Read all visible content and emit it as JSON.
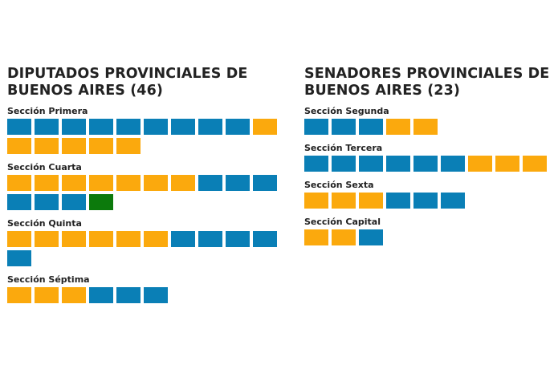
{
  "colors": {
    "blue": "#0a7fb6",
    "orange": "#fba90d",
    "green": "#0c7a0c"
  },
  "chart_data": [
    {
      "type": "waffle",
      "title": "DIPUTADOS PROVINCIALES DE BUENOS AIRES (46)",
      "title_line1": "DIPUTADOS PROVINCIALES DE",
      "title_line2": "BUENOS AIRES (46)",
      "total": 46,
      "sections": [
        {
          "name": "Sección Primera",
          "seats": [
            "blue",
            "blue",
            "blue",
            "blue",
            "blue",
            "blue",
            "blue",
            "blue",
            "blue",
            "orange",
            "orange",
            "orange",
            "orange",
            "orange",
            "orange"
          ]
        },
        {
          "name": "Sección Cuarta",
          "seats": [
            "orange",
            "orange",
            "orange",
            "orange",
            "orange",
            "orange",
            "orange",
            "blue",
            "blue",
            "blue",
            "blue",
            "blue",
            "blue",
            "green"
          ]
        },
        {
          "name": "Sección Quinta",
          "seats": [
            "orange",
            "orange",
            "orange",
            "orange",
            "orange",
            "orange",
            "blue",
            "blue",
            "blue",
            "blue",
            "blue"
          ]
        },
        {
          "name": "Sección Séptima",
          "seats": [
            "orange",
            "orange",
            "orange",
            "blue",
            "blue",
            "blue"
          ]
        }
      ]
    },
    {
      "type": "waffle",
      "title": "SENADORES PROVINCIALES DE BUENOS AIRES (23)",
      "title_line1": "SENADORES PROVINCIALES DE",
      "title_line2": "BUENOS AIRES (23)",
      "total": 23,
      "sections": [
        {
          "name": "Sección Segunda",
          "seats": [
            "blue",
            "blue",
            "blue",
            "orange",
            "orange"
          ]
        },
        {
          "name": "Sección Tercera",
          "seats": [
            "blue",
            "blue",
            "blue",
            "blue",
            "blue",
            "blue",
            "orange",
            "orange",
            "orange"
          ]
        },
        {
          "name": "Sección Sexta",
          "seats": [
            "orange",
            "orange",
            "orange",
            "blue",
            "blue",
            "blue"
          ]
        },
        {
          "name": "Sección Capital",
          "seats": [
            "orange",
            "orange",
            "blue"
          ]
        }
      ]
    }
  ]
}
